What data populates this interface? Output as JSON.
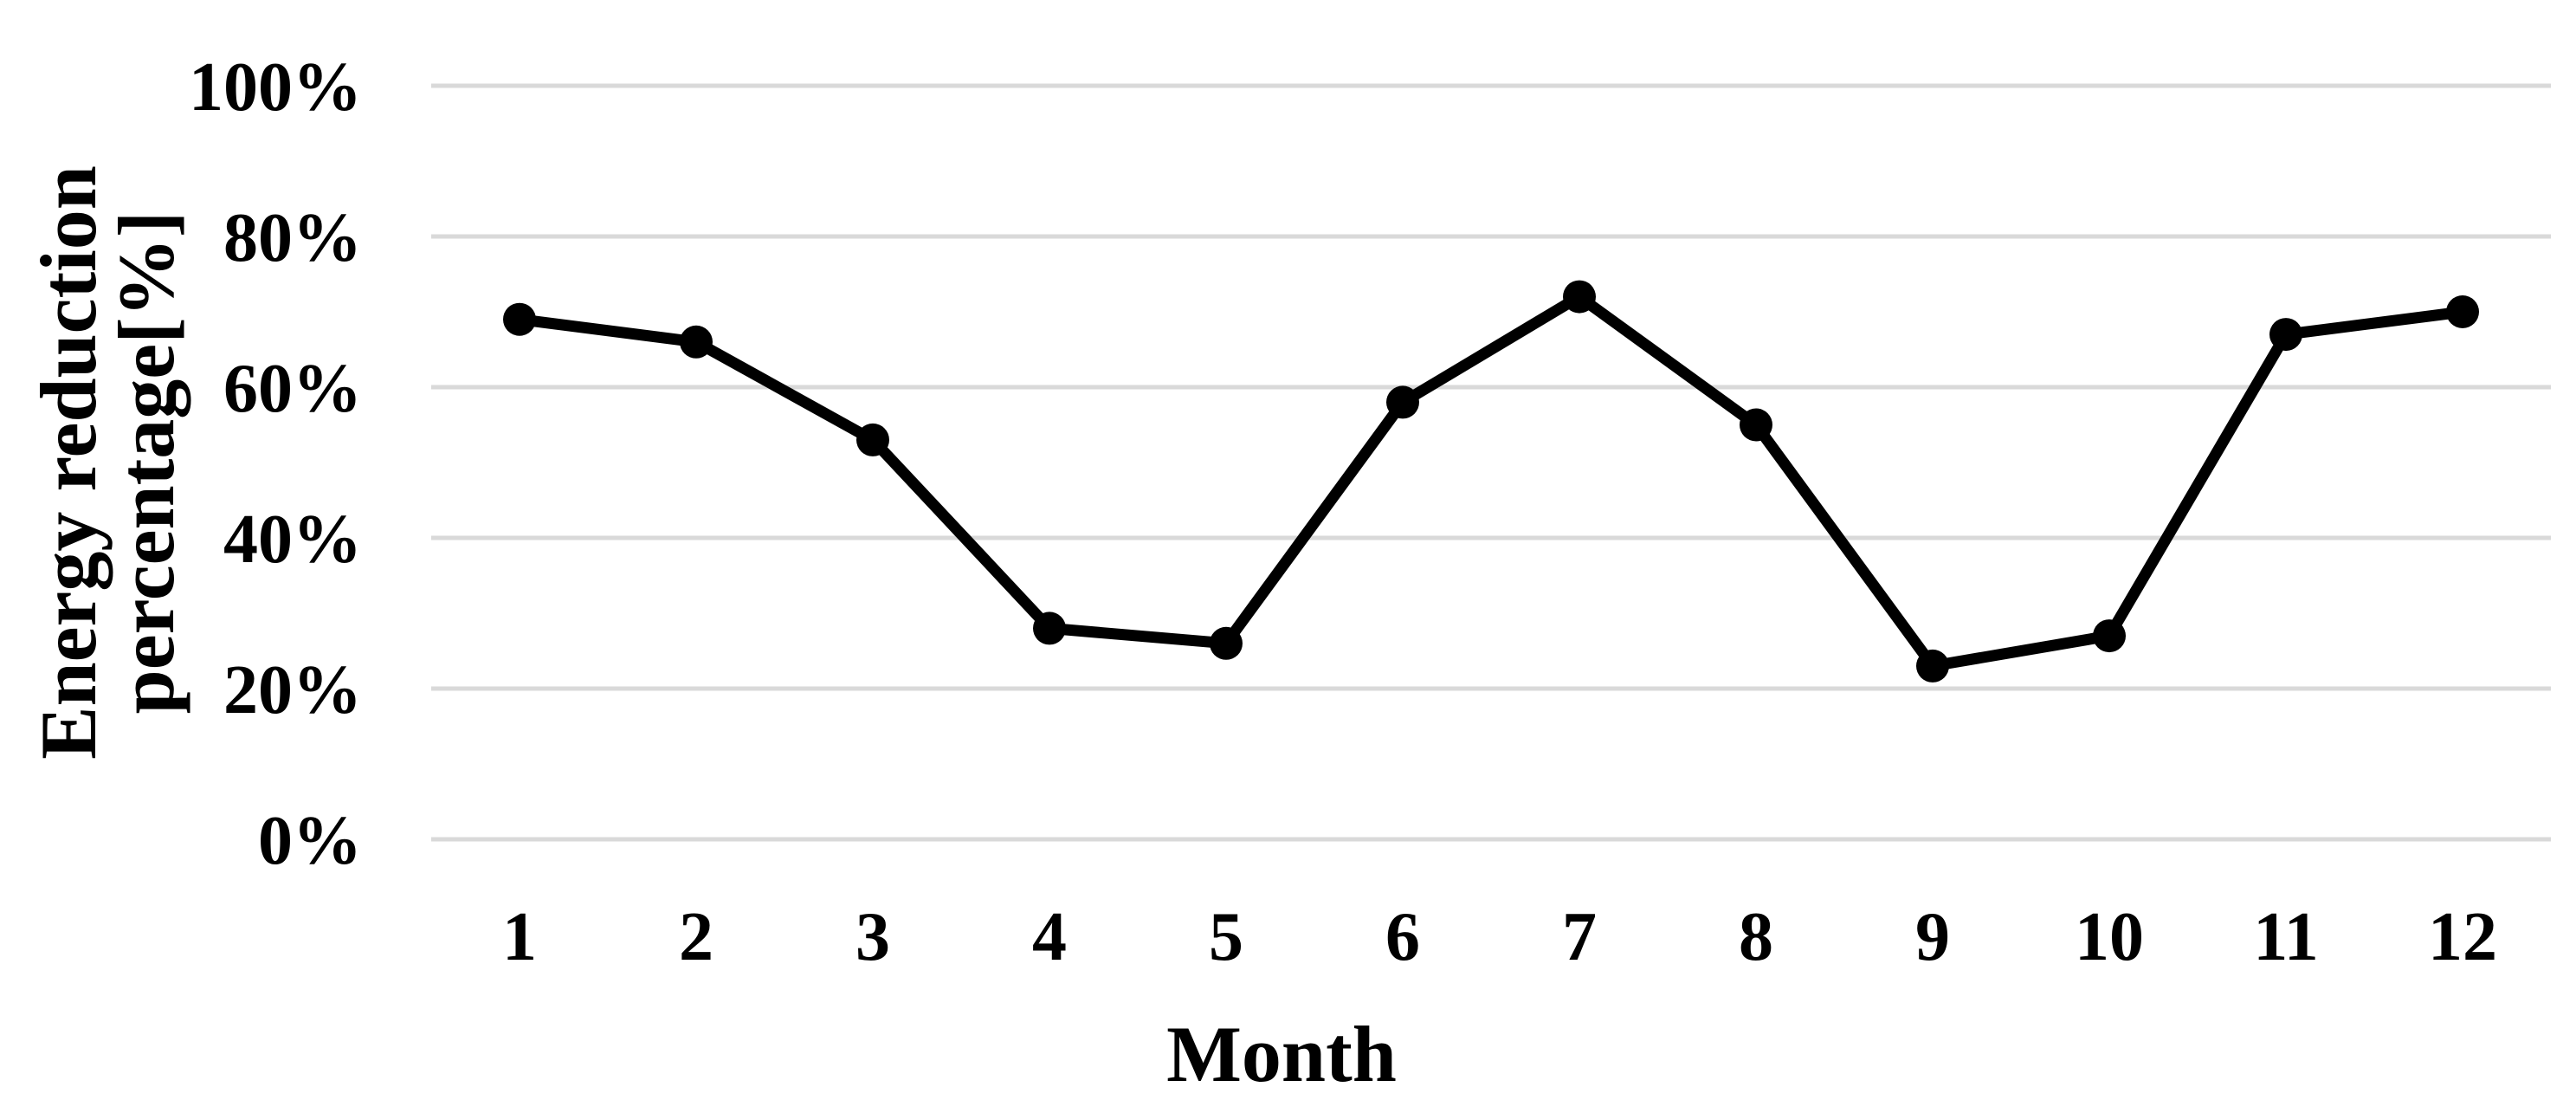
{
  "chart_data": {
    "type": "line",
    "title": "",
    "xlabel": "Month",
    "ylabel": "Energy reduction percentage[%]",
    "ylabel_lines": [
      "Energy reduction",
      "percentage[%]"
    ],
    "categories": [
      "1",
      "2",
      "3",
      "4",
      "5",
      "6",
      "7",
      "8",
      "9",
      "10",
      "11",
      "12"
    ],
    "series": [
      {
        "name": "Energy reduction percentage",
        "values": [
          69,
          66,
          53,
          28,
          26,
          58,
          72,
          55,
          23,
          27,
          67,
          70
        ]
      }
    ],
    "y_ticks": [
      {
        "value": 100,
        "label": "100%"
      },
      {
        "value": 80,
        "label": "80%"
      },
      {
        "value": 60,
        "label": "60%"
      },
      {
        "value": 40,
        "label": "40%"
      },
      {
        "value": 20,
        "label": "20%"
      },
      {
        "value": 0,
        "label": "0%"
      }
    ],
    "ylim": [
      0,
      100
    ],
    "grid": true,
    "legend": false,
    "marker": "circle",
    "colors": {
      "line": "#000000",
      "marker": "#000000",
      "gridline": "#d9d9d9",
      "text": "#000000",
      "background": "#ffffff"
    }
  }
}
